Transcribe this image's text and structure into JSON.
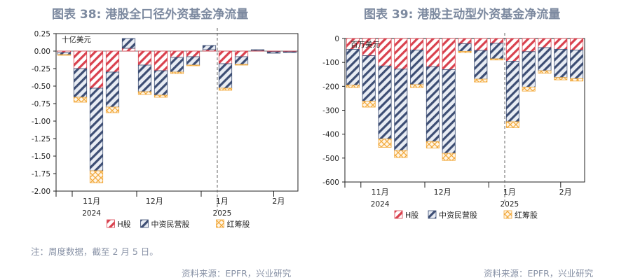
{
  "charts_meta": {
    "note": "注：周度数据，截至 2 月 5 日。",
    "legend_swatch_colors": {
      "H股": "#d9414e",
      "中资民营股": "#3d4e74",
      "红筹股": "#f2a93b"
    }
  },
  "chart_data": [
    {
      "type": "bar",
      "stacked": true,
      "title": "图表 38: 港股全口径外资基金净流量",
      "unit_label": "十亿美元",
      "source": "资料来源：EPFR，兴业研究",
      "ylim": [
        -2.0,
        0.25
      ],
      "yticks": [
        0.25,
        0.0,
        -0.25,
        -0.5,
        -0.75,
        -1.0,
        -1.25,
        -1.5,
        -1.75,
        -2.0
      ],
      "ytick_labels": [
        "0.25",
        "0.00",
        "-0.25",
        "-0.50",
        "-0.75",
        "-1.00",
        "-1.25",
        "-1.50",
        "-1.75",
        "-2.00"
      ],
      "x_month_labels": [
        "11月",
        "12月",
        "1月",
        "2月"
      ],
      "x_year_labels": [
        "2024",
        "2025"
      ],
      "grid": false,
      "legend_position": "bottom",
      "categories": [
        "2024-10-30",
        "2024-11-06",
        "2024-11-13",
        "2024-11-20",
        "2024-11-27",
        "2024-12-04",
        "2024-12-11",
        "2024-12-18",
        "2024-12-25",
        "2025-01-01",
        "2025-01-08",
        "2025-01-15",
        "2025-01-22",
        "2025-01-29",
        "2025-02-05"
      ],
      "series": [
        {
          "name": "H股",
          "color": "#d9414e",
          "values": [
            -0.02,
            -0.25,
            -0.53,
            -0.3,
            0.04,
            -0.2,
            -0.28,
            -0.09,
            -0.08,
            0.02,
            -0.18,
            -0.08,
            0.01,
            -0.01,
            -0.01
          ]
        },
        {
          "name": "中资民营股",
          "color": "#3d4e74",
          "values": [
            -0.03,
            -0.41,
            -1.18,
            -0.5,
            0.14,
            -0.38,
            -0.35,
            -0.21,
            -0.12,
            0.06,
            -0.35,
            -0.11,
            0.01,
            -0.02,
            -0.01
          ]
        },
        {
          "name": "红筹股",
          "color": "#f2a93b",
          "values": [
            -0.01,
            -0.07,
            -0.17,
            -0.08,
            0.0,
            -0.04,
            -0.03,
            -0.02,
            -0.01,
            0.0,
            -0.03,
            -0.01,
            0.0,
            0.0,
            0.0
          ]
        }
      ]
    },
    {
      "type": "bar",
      "stacked": true,
      "title": "图表 39: 港股主动型外资基金净流量",
      "unit_label": "百万美元",
      "source": "资料来源：EPFR，兴业研究",
      "ylim": [
        -600,
        0
      ],
      "yticks": [
        0,
        -100,
        -200,
        -300,
        -400,
        -500,
        -600
      ],
      "ytick_labels": [
        "0",
        "-100",
        "-200",
        "-300",
        "-400",
        "-500",
        "-600"
      ],
      "x_month_labels": [
        "11月",
        "12月",
        "1月",
        "2月"
      ],
      "x_year_labels": [
        "2024",
        "2025"
      ],
      "grid": false,
      "legend_position": "bottom",
      "categories": [
        "2024-10-30",
        "2024-11-06",
        "2024-11-13",
        "2024-11-20",
        "2024-11-27",
        "2024-12-04",
        "2024-12-11",
        "2024-12-18",
        "2024-12-25",
        "2025-01-01",
        "2025-01-08",
        "2025-01-15",
        "2025-01-22",
        "2025-01-29",
        "2025-02-05"
      ],
      "series": [
        {
          "name": "H股",
          "color": "#d9414e",
          "values": [
            -45,
            -72,
            -115,
            -128,
            -48,
            -118,
            -130,
            -22,
            -50,
            -20,
            -95,
            -55,
            -38,
            -45,
            -48
          ]
        },
        {
          "name": "中资民营股",
          "color": "#3d4e74",
          "values": [
            -150,
            -190,
            -305,
            -340,
            -145,
            -313,
            -350,
            -32,
            -120,
            -65,
            -253,
            -148,
            -97,
            -118,
            -120
          ]
        },
        {
          "name": "红筹股",
          "color": "#f2a93b",
          "values": [
            -10,
            -25,
            -35,
            -30,
            -12,
            -27,
            -30,
            -5,
            -12,
            -5,
            -25,
            -17,
            -10,
            -10,
            -10
          ]
        }
      ]
    }
  ]
}
